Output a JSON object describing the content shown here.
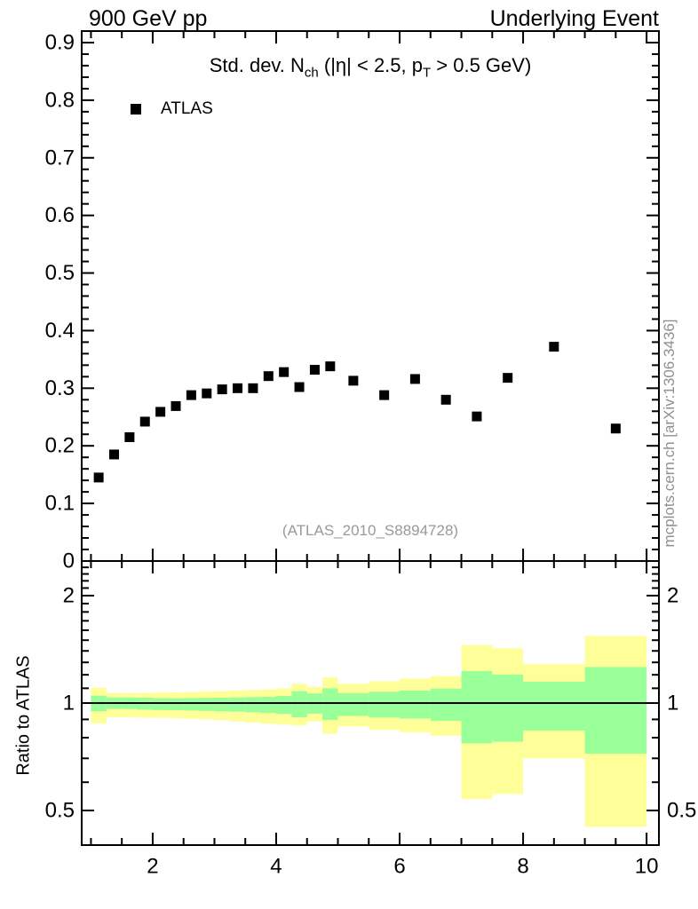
{
  "header": {
    "left": "900 GeV pp",
    "right": "Underlying Event"
  },
  "title": {
    "p1": "Std. dev. N",
    "sub1": "ch",
    "p2": " (|η| < 2.5, p",
    "sub2": "T",
    "p3": " > 0.5 GeV)"
  },
  "legend": {
    "series": "ATLAS",
    "marker": "filled-square-icon"
  },
  "watermark": "(ATLAS_2010_S8894728)",
  "side_note": "mcplots.cern.ch [arXiv:1306.3436]",
  "ratio_axis_label": "Ratio to ATLAS",
  "colors": {
    "band_outer": "#FFFF99",
    "band_inner": "#99FF99",
    "marker": "#000000",
    "frame": "#000000",
    "muted_text": "#999999"
  },
  "chart_data": {
    "type": "scatter",
    "xlim": [
      0.85,
      10.2
    ],
    "xticks": [
      2,
      4,
      6,
      8,
      10
    ],
    "x_minor_step": 0.5,
    "x_minor_range": [
      1.0,
      10.0
    ],
    "grid": false,
    "legend_position": "top-left-inside",
    "top_panel": {
      "ylim": [
        0,
        0.92
      ],
      "yticks": [
        0,
        0.1,
        0.2,
        0.3,
        0.4,
        0.5,
        0.6,
        0.7,
        0.8,
        0.9
      ],
      "ytick_labels": [
        "0",
        "0.1",
        "0.2",
        "0.3",
        "0.4",
        "0.5",
        "0.6",
        "0.7",
        "0.8",
        "0.9"
      ],
      "y_minor_step": 0.02,
      "series": [
        {
          "name": "ATLAS",
          "marker": "filled-square",
          "points": [
            [
              1.125,
              0.145
            ],
            [
              1.375,
              0.185
            ],
            [
              1.625,
              0.215
            ],
            [
              1.875,
              0.242
            ],
            [
              2.125,
              0.259
            ],
            [
              2.375,
              0.269
            ],
            [
              2.625,
              0.288
            ],
            [
              2.875,
              0.291
            ],
            [
              3.125,
              0.298
            ],
            [
              3.375,
              0.3
            ],
            [
              3.625,
              0.3
            ],
            [
              3.875,
              0.321
            ],
            [
              4.125,
              0.328
            ],
            [
              4.375,
              0.302
            ],
            [
              4.625,
              0.332
            ],
            [
              4.875,
              0.338
            ],
            [
              5.25,
              0.313
            ],
            [
              5.75,
              0.288
            ],
            [
              6.25,
              0.316
            ],
            [
              6.75,
              0.28
            ],
            [
              7.25,
              0.251
            ],
            [
              7.75,
              0.318
            ],
            [
              8.5,
              0.372
            ],
            [
              9.5,
              0.23
            ]
          ]
        }
      ]
    },
    "ratio_panel": {
      "scale": "log",
      "ylim": [
        0.4,
        2.5
      ],
      "yticks": [
        0.5,
        1,
        2
      ],
      "ytick_labels": [
        "0.5",
        "1",
        "2"
      ],
      "y_minor_ticks": [
        0.6,
        0.7,
        0.8,
        0.9,
        1.1,
        1.2,
        1.3,
        1.4,
        1.5,
        1.6,
        1.7,
        1.8,
        1.9,
        2.1,
        2.2,
        2.3,
        2.4
      ],
      "reference_line": 1,
      "bands": [
        {
          "x0": 1.0,
          "x1": 1.25,
          "outer": [
            0.877,
            1.104
          ],
          "inner": [
            0.948,
            1.049
          ]
        },
        {
          "x0": 1.25,
          "x1": 1.5,
          "outer": [
            0.912,
            1.067
          ],
          "inner": [
            0.963,
            1.037
          ]
        },
        {
          "x0": 1.5,
          "x1": 1.75,
          "outer": [
            0.912,
            1.066
          ],
          "inner": [
            0.962,
            1.037
          ]
        },
        {
          "x0": 1.75,
          "x1": 2.0,
          "outer": [
            0.91,
            1.066
          ],
          "inner": [
            0.958,
            1.035
          ]
        },
        {
          "x0": 2.0,
          "x1": 2.25,
          "outer": [
            0.909,
            1.07
          ],
          "inner": [
            0.956,
            1.032
          ]
        },
        {
          "x0": 2.25,
          "x1": 2.5,
          "outer": [
            0.907,
            1.071
          ],
          "inner": [
            0.955,
            1.031
          ]
        },
        {
          "x0": 2.5,
          "x1": 2.75,
          "outer": [
            0.903,
            1.073
          ],
          "inner": [
            0.953,
            1.033
          ]
        },
        {
          "x0": 2.75,
          "x1": 3.0,
          "outer": [
            0.9,
            1.077
          ],
          "inner": [
            0.951,
            1.034
          ]
        },
        {
          "x0": 3.0,
          "x1": 3.25,
          "outer": [
            0.895,
            1.08
          ],
          "inner": [
            0.948,
            1.035
          ]
        },
        {
          "x0": 3.25,
          "x1": 3.5,
          "outer": [
            0.888,
            1.084
          ],
          "inner": [
            0.946,
            1.037
          ]
        },
        {
          "x0": 3.5,
          "x1": 3.75,
          "outer": [
            0.882,
            1.088
          ],
          "inner": [
            0.942,
            1.039
          ]
        },
        {
          "x0": 3.75,
          "x1": 4.0,
          "outer": [
            0.875,
            1.092
          ],
          "inner": [
            0.938,
            1.041
          ]
        },
        {
          "x0": 4.0,
          "x1": 4.25,
          "outer": [
            0.87,
            1.1
          ],
          "inner": [
            0.932,
            1.047
          ]
        },
        {
          "x0": 4.25,
          "x1": 4.5,
          "outer": [
            0.866,
            1.133
          ],
          "inner": [
            0.912,
            1.079
          ]
        },
        {
          "x0": 4.5,
          "x1": 4.75,
          "outer": [
            0.888,
            1.11
          ],
          "inner": [
            0.934,
            1.064
          ]
        },
        {
          "x0": 4.75,
          "x1": 5.0,
          "outer": [
            0.82,
            1.18
          ],
          "inner": [
            0.897,
            1.1
          ]
        },
        {
          "x0": 5.0,
          "x1": 5.5,
          "outer": [
            0.86,
            1.133
          ],
          "inner": [
            0.92,
            1.066
          ]
        },
        {
          "x0": 5.5,
          "x1": 6.0,
          "outer": [
            0.841,
            1.152
          ],
          "inner": [
            0.911,
            1.076
          ]
        },
        {
          "x0": 6.0,
          "x1": 6.5,
          "outer": [
            0.828,
            1.172
          ],
          "inner": [
            0.905,
            1.084
          ]
        },
        {
          "x0": 6.5,
          "x1": 7.0,
          "outer": [
            0.81,
            1.19
          ],
          "inner": [
            0.892,
            1.098
          ]
        },
        {
          "x0": 7.0,
          "x1": 7.5,
          "outer": [
            0.538,
            1.454
          ],
          "inner": [
            0.771,
            1.229
          ]
        },
        {
          "x0": 7.5,
          "x1": 8.0,
          "outer": [
            0.556,
            1.424
          ],
          "inner": [
            0.779,
            1.202
          ]
        },
        {
          "x0": 8.0,
          "x1": 9.0,
          "outer": [
            0.7,
            1.285
          ],
          "inner": [
            0.837,
            1.148
          ]
        },
        {
          "x0": 9.0,
          "x1": 10.0,
          "outer": [
            0.45,
            1.542
          ],
          "inner": [
            0.721,
            1.262
          ]
        }
      ]
    }
  }
}
